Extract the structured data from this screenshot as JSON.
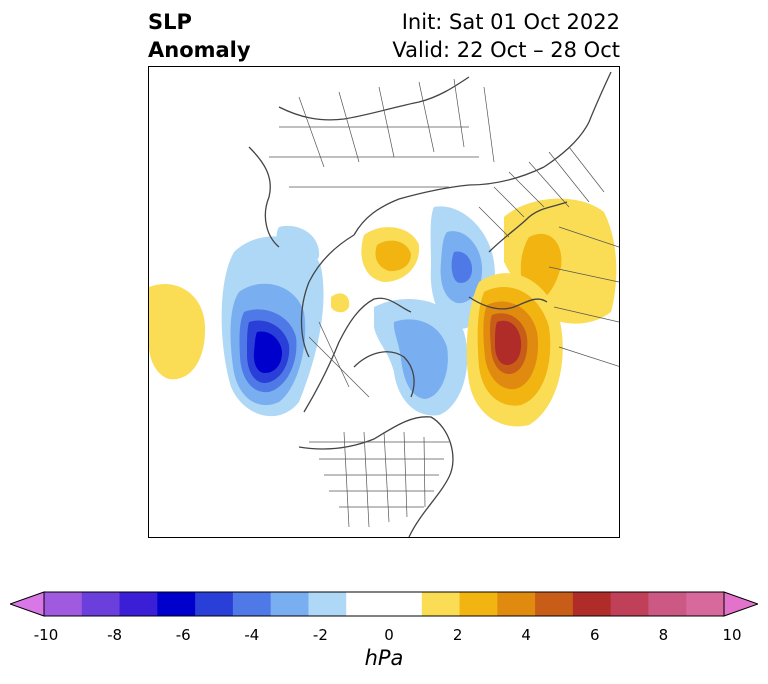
{
  "title": {
    "left_line1": "SLP",
    "left_line2": "Anomaly",
    "right_line1": "Init: Sat 01 Oct 2022",
    "right_line2": "Valid: 22 Oct – 28 Oct"
  },
  "colorbar": {
    "unit": "hPa",
    "ticks": [
      "-10",
      "-8",
      "-6",
      "-4",
      "-2",
      "0",
      "2",
      "4",
      "6",
      "8",
      "10"
    ],
    "colors": [
      "#d977e6",
      "#a05ae0",
      "#6b3fdc",
      "#3a1fd6",
      "#0000cc",
      "#2a3ed8",
      "#4f79e6",
      "#79aef0",
      "#aed8f6",
      "#ffffff",
      "#ffffff",
      "#fadd55",
      "#f1b410",
      "#e08a10",
      "#c85d18",
      "#b02c28",
      "#c0405a",
      "#cc5884",
      "#d8699c",
      "#e272ca"
    ],
    "extend": "both"
  }
}
